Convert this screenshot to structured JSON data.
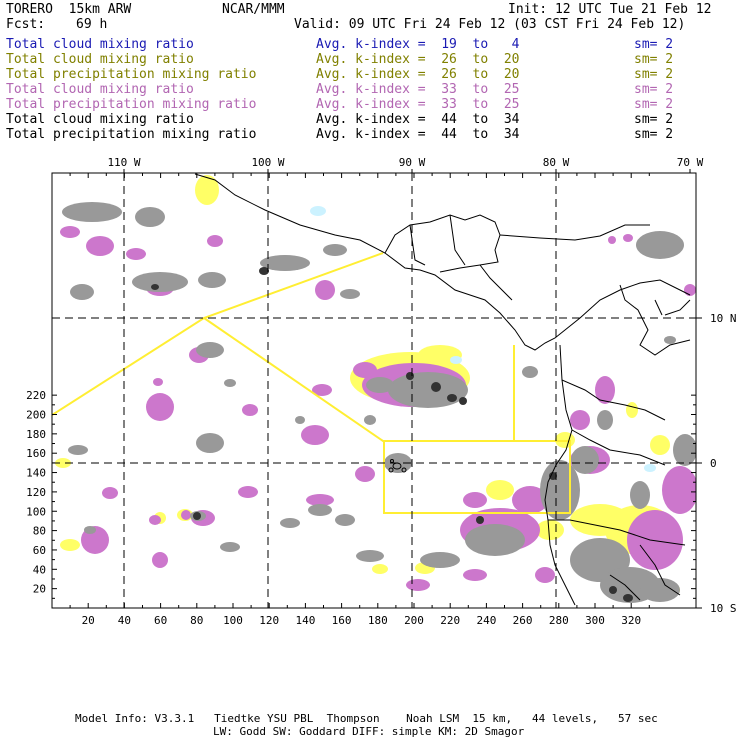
{
  "header": {
    "model": "TORERO  15km ARW",
    "org": "NCAR/MMM",
    "init": "Init: 12 UTC Tue 21 Feb 12",
    "fcst_label": "Fcst:",
    "fcst_value": "69 h",
    "valid": "Valid: 09 UTC Fri 24 Feb 12 (03 CST Fri 24 Feb 12)"
  },
  "legend": [
    {
      "field": "Total cloud mixing ratio",
      "index": "Avg. k-index =  19  to   4",
      "sm": "sm= 2",
      "color": "#1a1ab3"
    },
    {
      "field": "Total cloud mixing ratio",
      "index": "Avg. k-index =  26  to  20",
      "sm": "sm= 2",
      "color": "#808000"
    },
    {
      "field": "Total precipitation mixing ratio",
      "index": "Avg. k-index =  26  to  20",
      "sm": "sm= 2",
      "color": "#808000"
    },
    {
      "field": "Total cloud mixing ratio",
      "index": "Avg. k-index =  33  to  25",
      "sm": "sm= 2",
      "color": "#b266b2"
    },
    {
      "field": "Total precipitation mixing ratio",
      "index": "Avg. k-index =  33  to  25",
      "sm": "sm= 2",
      "color": "#b266b2"
    },
    {
      "field": "Total cloud mixing ratio",
      "index": "Avg. k-index =  44  to  34",
      "sm": "sm= 2",
      "color": "#000000"
    },
    {
      "field": "Total precipitation mixing ratio",
      "index": "Avg. k-index =  44  to  34",
      "sm": "sm= 2",
      "color": "#000000"
    }
  ],
  "map": {
    "x_ticks": [
      "20",
      "40",
      "60",
      "80",
      "100",
      "120",
      "140",
      "160",
      "180",
      "200",
      "220",
      "240",
      "260",
      "280",
      "300",
      "320"
    ],
    "y_ticks": [
      "220",
      "200",
      "180",
      "160",
      "140",
      "120",
      "100",
      "80",
      "60",
      "40",
      "20"
    ],
    "lon_labels": [
      "110 W",
      "100 W",
      "90 W",
      "80 W",
      "70 W"
    ],
    "lat_labels": [
      "10 N",
      "0",
      "10 S"
    ],
    "colors": {
      "yellow": "#ffff66",
      "magenta": "#cc77cc",
      "gray": "#999999",
      "dark": "#333333",
      "cyan": "#ccf2ff",
      "domain_line": "#ffee33"
    }
  },
  "footer": {
    "line1": "Model Info: V3.3.1   Tiedtke YSU PBL  Thompson    Noah LSM  15 km,   44 levels,   57 sec",
    "line2": "LW: Godd SW: Goddard DIFF: simple KM: 2D Smagor"
  }
}
